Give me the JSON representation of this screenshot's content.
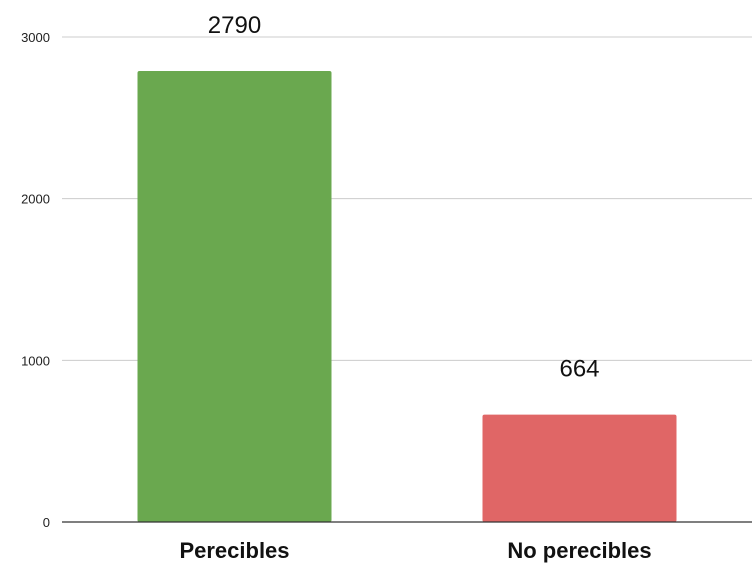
{
  "chart_data": {
    "type": "bar",
    "categories": [
      "Perecibles",
      "No perecibles"
    ],
    "values": [
      2790,
      664
    ],
    "data_labels": [
      "2790",
      "664"
    ],
    "ylim": [
      0,
      3000
    ],
    "y_ticks": [
      0,
      1000,
      2000,
      3000
    ],
    "y_tick_labels": [
      "0",
      "1000",
      "2000",
      "3000"
    ],
    "grid": true,
    "legend": "none",
    "colors": [
      "#6aa84f",
      "#e06666"
    ]
  }
}
